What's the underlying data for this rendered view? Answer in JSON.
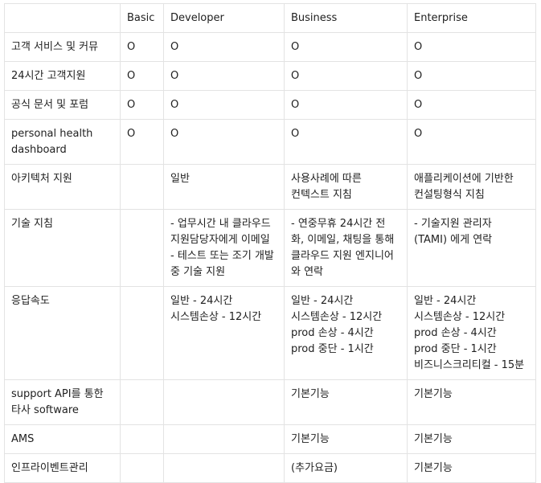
{
  "table": {
    "headers": [
      "",
      "Basic",
      "Developer",
      "Business",
      "Enterprise"
    ],
    "rows": [
      [
        "고객 서비스 및 커뮤",
        "O",
        "O",
        "O",
        "O"
      ],
      [
        "24시간 고객지원",
        "O",
        "O",
        "O",
        "O"
      ],
      [
        "공식 문서 및 포럼",
        "O",
        "O",
        "O",
        "O"
      ],
      [
        "personal health\ndashboard",
        "O",
        "O",
        "O",
        "O"
      ],
      [
        "아키텍처 지원",
        "",
        "일반",
        "사용사례에 따른\n컨텍스트 지침",
        "애플리케이션에 기반한\n컨설팅형식 지침"
      ],
      [
        "기술 지침",
        "",
        "- 업무시간 내 클라우드\n지원담당자에게 이메일\n- 테스트 또는 조기 개발\n중 기술 지원",
        "- 연중무휴 24시간 전\n화, 이메일, 채팅을 통해\n클라우드 지원 엔지니어\n와 연락",
        "- 기술지원 관리자\n(TAMI) 에게 연락"
      ],
      [
        "응답속도",
        "",
        "일반 - 24시간\n시스템손상 - 12시간",
        "일반 - 24시간\n시스템손상 - 12시간\nprod 손상 - 4시간\nprod 중단 - 1시간",
        "일반 - 24시간\n시스템손상 - 12시간\nprod 손상 - 4시간\nprod 중단 - 1시간\n비즈니스크리티컬 - 15분"
      ],
      [
        "support API를 통한\n타사 software",
        "",
        "",
        "기본기능",
        "기본기능"
      ],
      [
        "AMS",
        "",
        "",
        "기본기능",
        "기본기능"
      ],
      [
        "인프라이벤트관리",
        "",
        "",
        "(추가요금)",
        "기본기능"
      ]
    ]
  }
}
